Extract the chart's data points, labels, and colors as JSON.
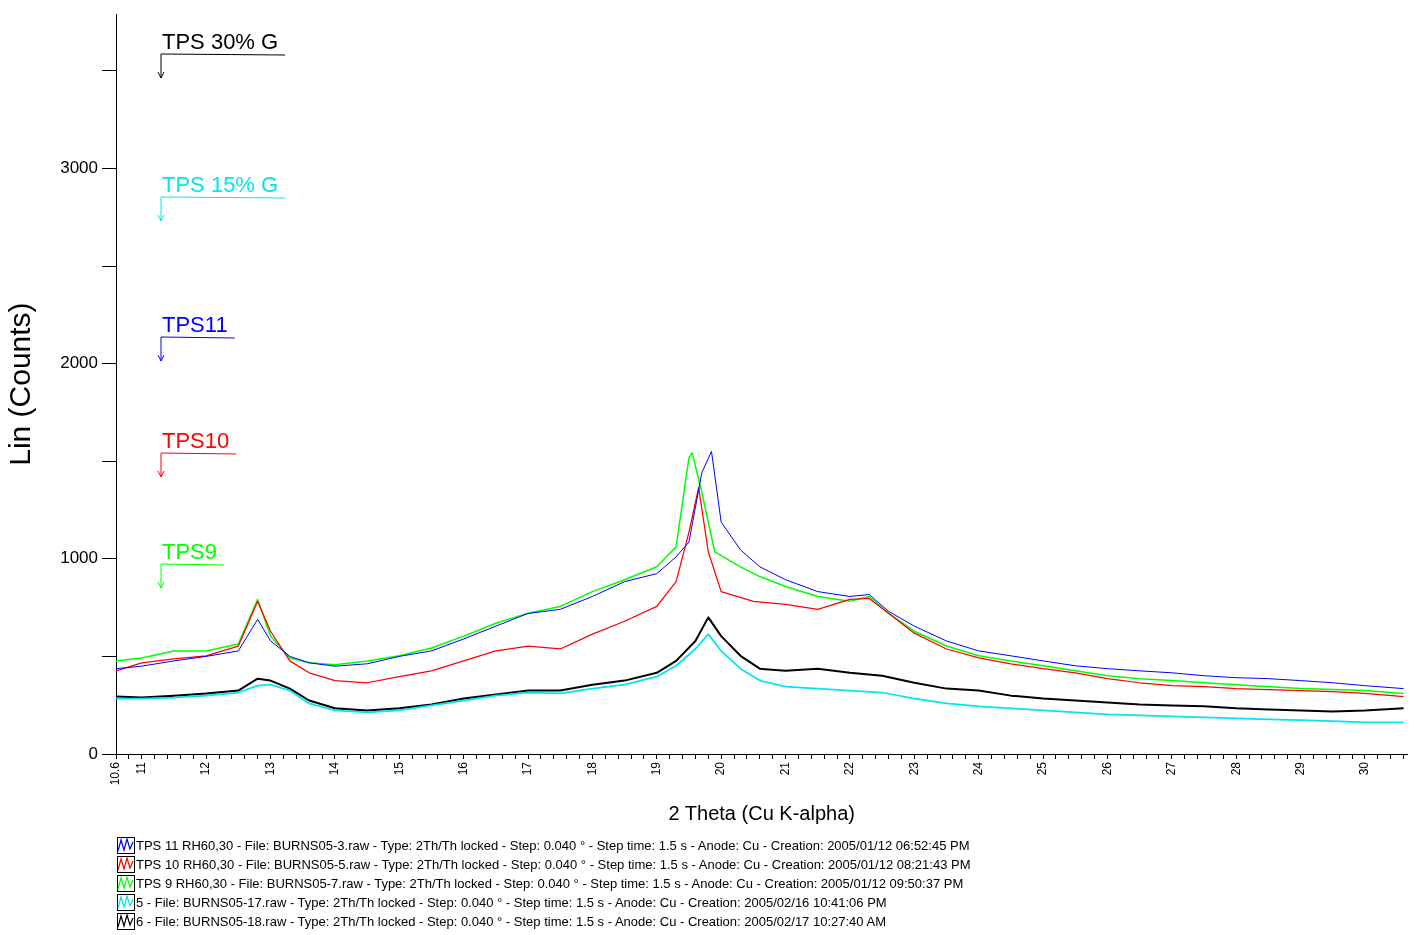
{
  "chart_data": {
    "type": "line",
    "xlabel": "2 Theta (Cu K-alpha)",
    "ylabel": "Lin (Counts)",
    "xlim": [
      10.6,
      30.66
    ],
    "ylim": [
      0,
      3790
    ],
    "xticks": [
      {
        "value": 10.6,
        "label": "10.6"
      },
      {
        "value": 10.8,
        "label": null
      },
      11,
      {
        "value": 11.2,
        "label": null
      },
      {
        "value": 11.4,
        "label": null
      },
      {
        "value": 11.6,
        "label": null
      },
      {
        "value": 11.8,
        "label": null
      },
      12,
      {
        "value": 12.2,
        "label": null
      },
      {
        "value": 12.4,
        "label": null
      },
      {
        "value": 12.6,
        "label": null
      },
      {
        "value": 12.8,
        "label": null
      },
      13,
      {
        "value": 13.2,
        "label": null
      },
      {
        "value": 13.4,
        "label": null
      },
      {
        "value": 13.6,
        "label": null
      },
      {
        "value": 13.8,
        "label": null
      },
      14,
      {
        "value": 14.2,
        "label": null
      },
      {
        "value": 14.4,
        "label": null
      },
      {
        "value": 14.6,
        "label": null
      },
      {
        "value": 14.8,
        "label": null
      },
      15,
      {
        "value": 15.2,
        "label": null
      },
      {
        "value": 15.4,
        "label": null
      },
      {
        "value": 15.6,
        "label": null
      },
      {
        "value": 15.8,
        "label": null
      },
      16,
      {
        "value": 16.2,
        "label": null
      },
      {
        "value": 16.4,
        "label": null
      },
      {
        "value": 16.6,
        "label": null
      },
      {
        "value": 16.8,
        "label": null
      },
      17,
      {
        "value": 17.2,
        "label": null
      },
      {
        "value": 17.4,
        "label": null
      },
      {
        "value": 17.6,
        "label": null
      },
      {
        "value": 17.8,
        "label": null
      },
      18,
      {
        "value": 18.2,
        "label": null
      },
      {
        "value": 18.4,
        "label": null
      },
      {
        "value": 18.6,
        "label": null
      },
      {
        "value": 18.8,
        "label": null
      },
      19,
      {
        "value": 19.2,
        "label": null
      },
      {
        "value": 19.4,
        "label": null
      },
      {
        "value": 19.6,
        "label": null
      },
      {
        "value": 19.8,
        "label": null
      },
      20,
      {
        "value": 20.2,
        "label": null
      },
      {
        "value": 20.4,
        "label": null
      },
      {
        "value": 20.6,
        "label": null
      },
      {
        "value": 20.8,
        "label": null
      },
      21,
      {
        "value": 21.2,
        "label": null
      },
      {
        "value": 21.4,
        "label": null
      },
      {
        "value": 21.6,
        "label": null
      },
      {
        "value": 21.8,
        "label": null
      },
      22,
      {
        "value": 22.2,
        "label": null
      },
      {
        "value": 22.4,
        "label": null
      },
      {
        "value": 22.6,
        "label": null
      },
      {
        "value": 22.8,
        "label": null
      },
      23,
      {
        "value": 23.2,
        "label": null
      },
      {
        "value": 23.4,
        "label": null
      },
      {
        "value": 23.6,
        "label": null
      },
      {
        "value": 23.8,
        "label": null
      },
      24,
      {
        "value": 24.2,
        "label": null
      },
      {
        "value": 24.4,
        "label": null
      },
      {
        "value": 24.6,
        "label": null
      },
      {
        "value": 24.8,
        "label": null
      },
      25,
      {
        "value": 25.2,
        "label": null
      },
      {
        "value": 25.4,
        "label": null
      },
      {
        "value": 25.6,
        "label": null
      },
      {
        "value": 25.8,
        "label": null
      },
      26,
      {
        "value": 26.2,
        "label": null
      },
      {
        "value": 26.4,
        "label": null
      },
      {
        "value": 26.6,
        "label": null
      },
      {
        "value": 26.8,
        "label": null
      },
      27,
      {
        "value": 27.2,
        "label": null
      },
      {
        "value": 27.4,
        "label": null
      },
      {
        "value": 27.6,
        "label": null
      },
      {
        "value": 27.8,
        "label": null
      },
      28,
      {
        "value": 28.2,
        "label": null
      },
      {
        "value": 28.4,
        "label": null
      },
      {
        "value": 28.6,
        "label": null
      },
      {
        "value": 28.8,
        "label": null
      },
      29,
      {
        "value": 29.2,
        "label": null
      },
      {
        "value": 29.4,
        "label": null
      },
      {
        "value": 29.6,
        "label": null
      },
      {
        "value": 29.8,
        "label": null
      },
      30,
      {
        "value": 30.2,
        "label": null
      },
      {
        "value": 30.4,
        "label": null
      },
      {
        "value": 30.6,
        "label": null
      }
    ],
    "yticks": [
      0,
      {
        "value": 500,
        "label": null
      },
      1000,
      {
        "value": 1500,
        "label": null
      },
      2000,
      {
        "value": 2500,
        "label": null
      },
      3000,
      {
        "value": 3500,
        "label": null
      }
    ],
    "grid": false,
    "legend": "bottom",
    "marker": "none",
    "line_style": "solid",
    "annotations": [
      "TPS11",
      "TPS10",
      "TPS9",
      "TPS 15% G",
      "TPS 30% G"
    ],
    "series": [
      {
        "name": "TPS 11 RH60,30 - File: BURNS05-3.raw - Type: 2Th/Th locked - Step: 0.040 ° - Step time: 1.5 s - Anode: Cu - Creation: 2005/01/12 06:52:45 PM",
        "color": "#0000ff",
        "x": [
          10.6,
          11,
          11.5,
          12,
          12.5,
          12.8,
          13,
          13.3,
          13.6,
          14,
          14.5,
          15,
          15.5,
          16,
          16.5,
          17,
          17.5,
          18,
          18.5,
          19,
          19.3,
          19.5,
          19.7,
          19.85,
          20,
          20.3,
          20.6,
          21,
          21.5,
          22,
          22.3,
          22.6,
          23,
          23.5,
          24,
          24.5,
          25,
          25.5,
          26,
          26.5,
          27,
          27.5,
          28,
          28.5,
          29,
          29.5,
          30,
          30.6
        ],
        "values": [
          437,
          450,
          477,
          500,
          528,
          690,
          580,
          500,
          467,
          450,
          462,
          500,
          528,
          589,
          655,
          720,
          741,
          807,
          883,
          924,
          1010,
          1086,
          1442,
          1550,
          1188,
          1046,
          959,
          893,
          832,
          807,
          817,
          731,
          655,
          579,
          528,
          503,
          477,
          452,
          437,
          426,
          416,
          401,
          391,
          386,
          376,
          365,
          350,
          335
        ]
      },
      {
        "name": "TPS 10 RH60,30 - File: BURNS05-5.raw - Type: 2Th/Th locked - Step: 0.040 ° - Step time: 1.5 s - Anode: Cu - Creation: 2005/01/12 08:21:43 PM",
        "color": "#ff0000",
        "x": [
          10.6,
          11,
          11.5,
          12,
          12.5,
          12.8,
          13,
          13.3,
          13.6,
          14,
          14.5,
          15,
          15.5,
          16,
          16.5,
          17,
          17.5,
          18,
          18.5,
          19,
          19.3,
          19.5,
          19.65,
          19.8,
          20,
          20.5,
          21,
          21.5,
          22,
          22.3,
          22.6,
          23,
          23.5,
          24,
          24.5,
          25,
          25.5,
          26,
          26.5,
          27,
          27.5,
          28,
          28.5,
          29,
          29.5,
          30,
          30.6
        ],
        "values": [
          426,
          467,
          487,
          503,
          553,
          782,
          629,
          477,
          416,
          376,
          365,
          396,
          426,
          477,
          528,
          553,
          538,
          614,
          680,
          756,
          883,
          1137,
          1365,
          1036,
          832,
          782,
          766,
          741,
          792,
          797,
          721,
          619,
          538,
          492,
          462,
          437,
          416,
          386,
          365,
          350,
          345,
          335,
          330,
          325,
          320,
          310,
          294
        ]
      },
      {
        "name": "TPS 9 RH60,30 - File: BURNS05-7.raw - Type: 2Th/Th locked - Step: 0.040 ° - Step time: 1.5 s - Anode: Cu - Creation: 2005/01/12 09:50:37 PM",
        "color": "#00ff00",
        "x": [
          10.6,
          11,
          11.5,
          12,
          12.5,
          12.8,
          13,
          13.3,
          13.6,
          14,
          14.5,
          15,
          15.5,
          16,
          16.5,
          17,
          17.5,
          18,
          18.5,
          19,
          19.3,
          19.5,
          19.55,
          19.7,
          19.9,
          20.3,
          20.6,
          21,
          21.5,
          22,
          22.3,
          22.6,
          23,
          23.5,
          24,
          24.5,
          25,
          25.5,
          26,
          26.5,
          27,
          27.5,
          28,
          28.5,
          29,
          29.5,
          30,
          30.6
        ],
        "values": [
          477,
          492,
          528,
          528,
          563,
          792,
          604,
          492,
          467,
          457,
          477,
          503,
          543,
          604,
          670,
          721,
          756,
          832,
          893,
          959,
          1061,
          1518,
          1543,
          1340,
          1036,
          959,
          909,
          858,
          807,
          782,
          807,
          721,
          629,
          553,
          503,
          477,
          452,
          426,
          401,
          386,
          376,
          365,
          355,
          345,
          335,
          330,
          325,
          310
        ]
      },
      {
        "name": "5 - File: BURNS05-17.raw - Type: 2Th/Th locked - Step: 0.040 ° - Step time: 1.5 s - Anode: Cu - Creation: 2005/02/16 10:41:06 PM",
        "color": "#00e5ee",
        "x": [
          10.6,
          11,
          11.5,
          12,
          12.5,
          12.8,
          13,
          13.3,
          13.6,
          14,
          14.5,
          15,
          15.5,
          16,
          16.5,
          17,
          17.5,
          18,
          18.5,
          19,
          19.3,
          19.6,
          19.8,
          20,
          20.3,
          20.6,
          21,
          21.5,
          22,
          22.5,
          23,
          23.5,
          24,
          24.5,
          25,
          25.5,
          26,
          26.5,
          27,
          27.5,
          28,
          28.5,
          29,
          29.5,
          30,
          30.6
        ],
        "values": [
          284,
          284,
          289,
          299,
          315,
          350,
          355,
          325,
          259,
          223,
          213,
          223,
          249,
          274,
          299,
          315,
          310,
          335,
          355,
          396,
          452,
          538,
          614,
          528,
          437,
          376,
          345,
          335,
          325,
          315,
          284,
          259,
          244,
          234,
          223,
          213,
          203,
          198,
          193,
          188,
          183,
          178,
          173,
          168,
          162,
          162
        ]
      },
      {
        "name": "6 - File: BURNS05-18.raw - Type: 2Th/Th locked - Step: 0.040 ° - Step time: 1.5 s - Anode: Cu - Creation: 2005/02/17 10:27:40 AM",
        "color": "#000000",
        "x": [
          10.6,
          11,
          11.5,
          12,
          12.5,
          12.8,
          13,
          13.3,
          13.6,
          14,
          14.5,
          15,
          15.5,
          16,
          16.5,
          17,
          17.5,
          18,
          18.5,
          19,
          19.3,
          19.6,
          19.8,
          20,
          20.3,
          20.6,
          21,
          21.5,
          22,
          22.5,
          23,
          23.5,
          24,
          24.5,
          25,
          25.5,
          26,
          26.5,
          27,
          27.5,
          28,
          28.5,
          29,
          29.5,
          30,
          30.6
        ],
        "values": [
          294,
          289,
          299,
          310,
          325,
          386,
          376,
          335,
          274,
          234,
          223,
          234,
          254,
          284,
          305,
          325,
          325,
          355,
          376,
          416,
          477,
          579,
          700,
          604,
          503,
          437,
          426,
          437,
          416,
          401,
          365,
          335,
          325,
          299,
          284,
          274,
          264,
          254,
          249,
          244,
          234,
          228,
          223,
          218,
          223,
          234
        ]
      }
    ]
  }
}
